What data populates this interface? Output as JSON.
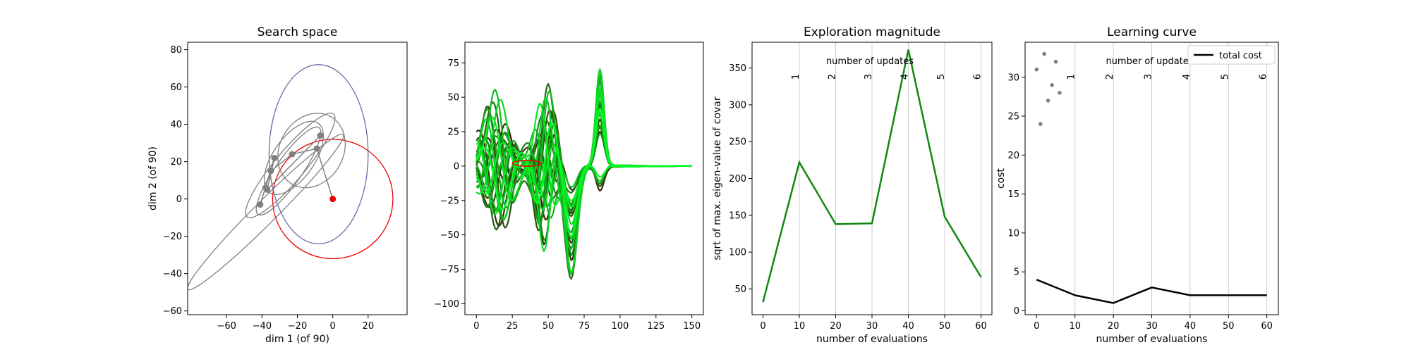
{
  "figure": {
    "background": "#ffffff"
  },
  "chart_data": [
    {
      "type": "scatter",
      "title": "Search space",
      "xlabel": "dim 1 (of 90)",
      "ylabel": "dim 2 (of 90)",
      "xlim": [
        -82,
        42
      ],
      "ylim": [
        -62,
        84
      ],
      "xticks": [
        -60,
        -40,
        -20,
        0,
        20
      ],
      "yticks": [
        -60,
        -40,
        -20,
        0,
        20,
        40,
        60,
        80
      ],
      "colors": {
        "path": "#808080",
        "start": "#ee0000",
        "final": "#6a6aa8"
      },
      "points": [
        {
          "x": 0,
          "y": 0
        },
        {
          "x": -9,
          "y": 27
        },
        {
          "x": -23,
          "y": 24
        },
        {
          "x": -35,
          "y": 15
        },
        {
          "x": -38,
          "y": 6
        },
        {
          "x": -41,
          "y": -3
        },
        {
          "x": -33,
          "y": 22
        },
        {
          "x": -37,
          "y": 5
        },
        {
          "x": -7,
          "y": 34
        }
      ],
      "ellipses": [
        {
          "cx": 0,
          "cy": 0,
          "rx": 34,
          "ry": 32,
          "angle": 0,
          "color": "start"
        },
        {
          "cx": -8,
          "cy": 24,
          "rx": 28,
          "ry": 48,
          "angle": 0,
          "color": "final"
        },
        {
          "cx": -25,
          "cy": 15,
          "rx": 30,
          "ry": 7,
          "angle": 55,
          "color": "path"
        },
        {
          "cx": -24,
          "cy": 18,
          "rx": 38,
          "ry": 8,
          "angle": 50,
          "color": "path"
        },
        {
          "cx": -38,
          "cy": -7,
          "rx": 62,
          "ry": 6,
          "angle": 45,
          "color": "path"
        },
        {
          "cx": -22,
          "cy": 22,
          "rx": 24,
          "ry": 11,
          "angle": 55,
          "color": "path"
        },
        {
          "cx": -12,
          "cy": 26,
          "rx": 22,
          "ry": 17,
          "angle": 60,
          "color": "path"
        }
      ]
    },
    {
      "type": "line",
      "title": "",
      "xlabel": "",
      "ylabel": "",
      "xlim": [
        -8,
        158
      ],
      "ylim": [
        -108,
        90
      ],
      "xticks": [
        0,
        25,
        50,
        75,
        100,
        125,
        150
      ],
      "yticks": [
        -100,
        -75,
        -50,
        -25,
        0,
        25,
        50,
        75
      ],
      "n_points": 151,
      "colors": {
        "dark": "#3a1a05",
        "mid": "#1a8c1a",
        "bright": "#00ff22",
        "start": "#ee0000"
      },
      "series_count": 24
    },
    {
      "type": "line",
      "title": "Exploration magnitude",
      "xlabel": "number of evaluations",
      "ylabel": "sqrt of max. eigen-value of covar",
      "top_label": "number of updates",
      "xlim": [
        -3,
        63
      ],
      "ylim": [
        15,
        385
      ],
      "xticks": [
        0,
        10,
        20,
        30,
        40,
        50,
        60
      ],
      "yticks": [
        50,
        100,
        150,
        200,
        250,
        300,
        350
      ],
      "update_ticks": [
        {
          "x": 10,
          "label": "1"
        },
        {
          "x": 20,
          "label": "2"
        },
        {
          "x": 30,
          "label": "3"
        },
        {
          "x": 40,
          "label": "4"
        },
        {
          "x": 50,
          "label": "5"
        },
        {
          "x": 60,
          "label": "6"
        }
      ],
      "color": "#118811",
      "x": [
        0,
        10,
        20,
        30,
        40,
        50,
        60
      ],
      "y": [
        32,
        222,
        138,
        139,
        375,
        148,
        66
      ]
    },
    {
      "type": "line",
      "title": "Learning curve",
      "xlabel": "number of evaluations",
      "ylabel": "cost",
      "top_label": "number of updates",
      "xlim": [
        -3,
        63
      ],
      "ylim": [
        -0.5,
        34.5
      ],
      "xticks": [
        0,
        10,
        20,
        30,
        40,
        50,
        60
      ],
      "yticks": [
        0,
        5,
        10,
        15,
        20,
        25,
        30
      ],
      "update_ticks": [
        {
          "x": 10,
          "label": "1"
        },
        {
          "x": 20,
          "label": "2"
        },
        {
          "x": 30,
          "label": "3"
        },
        {
          "x": 40,
          "label": "4"
        },
        {
          "x": 50,
          "label": "5"
        },
        {
          "x": 60,
          "label": "6"
        }
      ],
      "legend": {
        "label": "total cost",
        "position": "upper right"
      },
      "color": "#000000",
      "dot_color": "#808080",
      "series": [
        {
          "name": "total cost",
          "x": [
            0,
            10,
            20,
            30,
            40,
            50,
            60
          ],
          "values": [
            4,
            2,
            1,
            3,
            2,
            2,
            2
          ]
        }
      ],
      "samples": [
        {
          "x": 0,
          "y": 31
        },
        {
          "x": 1,
          "y": 24
        },
        {
          "x": 2,
          "y": 33
        },
        {
          "x": 3,
          "y": 27
        },
        {
          "x": 4,
          "y": 29
        },
        {
          "x": 5,
          "y": 32
        },
        {
          "x": 6,
          "y": 28
        }
      ]
    }
  ]
}
